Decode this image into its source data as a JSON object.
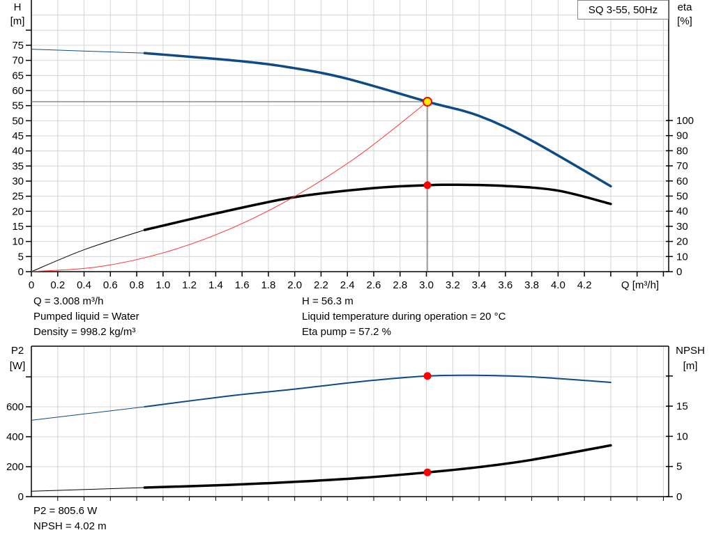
{
  "legend": "SQ 3-55, 50Hz",
  "colors": {
    "head": "#0d4a86",
    "eta": "#000000",
    "system": "#ff3030",
    "p2": "#0d4a86",
    "npsh": "#000000",
    "duty_marker": "#ff0000",
    "duty_marker_fill_top": "#ffee00",
    "grid": "#d4d4d4"
  },
  "info_top": {
    "q": "Q = 3.008 m³/h",
    "h": "H = 56.3 m",
    "liquid": "Pumped liquid = Water",
    "temp": "Liquid temperature during operation = 20 °C",
    "density": "Density = 998.2 kg/m³",
    "eta": "Eta pump = 57.2 %"
  },
  "info_bottom": {
    "p2": "P2 = 805.6 W",
    "npsh": "NPSH = 4.02 m"
  },
  "chart_data": [
    {
      "type": "line",
      "title": "",
      "xlabel": "Q [m³/h]",
      "ylabel_left": [
        "H",
        "[m]"
      ],
      "ylabel_right": [
        "eta",
        "[%]"
      ],
      "xlim": [
        0,
        4.84
      ],
      "ylim_left": [
        0,
        90
      ],
      "ylim_right_eta_zero_to_100_maps_to_H": [
        0,
        50
      ],
      "x_ticks": [
        "0",
        "0.2",
        "0.4",
        "0.6",
        "0.8",
        "1.0",
        "1.2",
        "1.4",
        "1.6",
        "1.8",
        "2.0",
        "2.2",
        "2.4",
        "2.6",
        "2.8",
        "3.0",
        "3.2",
        "3.4",
        "3.6",
        "3.8",
        "4.0",
        "4.2"
      ],
      "y_ticks_left": [
        "0",
        "5",
        "10",
        "15",
        "20",
        "25",
        "30",
        "35",
        "40",
        "45",
        "50",
        "55",
        "60",
        "65",
        "70",
        "75"
      ],
      "y_ticks_right": [
        "0",
        "10",
        "20",
        "30",
        "40",
        "50",
        "60",
        "70",
        "80",
        "90",
        "100"
      ],
      "grid": true,
      "legend_position": "top-right",
      "operating_range_start": 0.86,
      "series": [
        {
          "key": "head",
          "axis": "left",
          "x": [
            0,
            0.86,
            1.6,
            2.0,
            2.4,
            3.008,
            3.4,
            3.8,
            4.4
          ],
          "y": [
            73.7,
            72.4,
            69.7,
            67.4,
            63.9,
            56.3,
            51.6,
            43.4,
            28.3
          ]
        },
        {
          "key": "eta",
          "axis": "right",
          "x": [
            0,
            0.4,
            0.86,
            1.4,
            2.0,
            2.6,
            3.008,
            3.2,
            3.6,
            4.0,
            4.4
          ],
          "y": [
            0,
            14.5,
            27.6,
            38.5,
            49.3,
            55.3,
            57.2,
            57.5,
            56.7,
            53.6,
            44.8
          ]
        },
        {
          "key": "system",
          "axis": "left",
          "x": [
            0,
            0.5,
            1.0,
            1.5,
            2.0,
            2.5,
            3.008
          ],
          "y": [
            0,
            1.56,
            6.22,
            14.0,
            24.9,
            38.9,
            56.3
          ]
        }
      ],
      "duty_point": {
        "q": 3.008,
        "h": 56.3,
        "eta": 57.2
      }
    },
    {
      "type": "line",
      "title": "",
      "ylabel_left": [
        "P2",
        "[W]"
      ],
      "ylabel_right": [
        "NPSH",
        "[m]"
      ],
      "xlim": [
        0,
        4.84
      ],
      "ylim_left": [
        0,
        1000
      ],
      "ylim_right": [
        0,
        25
      ],
      "y_ticks_left": [
        "0",
        "200",
        "400",
        "600"
      ],
      "y_ticks_right": [
        "0",
        "5",
        "10",
        "15"
      ],
      "grid": true,
      "operating_range_start": 0.86,
      "series": [
        {
          "key": "p2",
          "axis": "left",
          "x": [
            0,
            0.86,
            1.5,
            2.0,
            2.5,
            3.008,
            3.4,
            3.8,
            4.4
          ],
          "y": [
            510,
            600,
            672,
            718,
            768,
            805.6,
            810,
            800,
            763
          ]
        },
        {
          "key": "npsh",
          "axis": "right",
          "x": [
            0,
            0.86,
            1.5,
            2.0,
            2.5,
            3.008,
            3.4,
            3.8,
            4.4
          ],
          "y": [
            0.9,
            1.5,
            1.95,
            2.45,
            3.1,
            4.02,
            4.9,
            6.1,
            8.5
          ]
        }
      ],
      "duty_point": {
        "q": 3.008,
        "p2": 805.6,
        "npsh": 4.02
      }
    }
  ]
}
